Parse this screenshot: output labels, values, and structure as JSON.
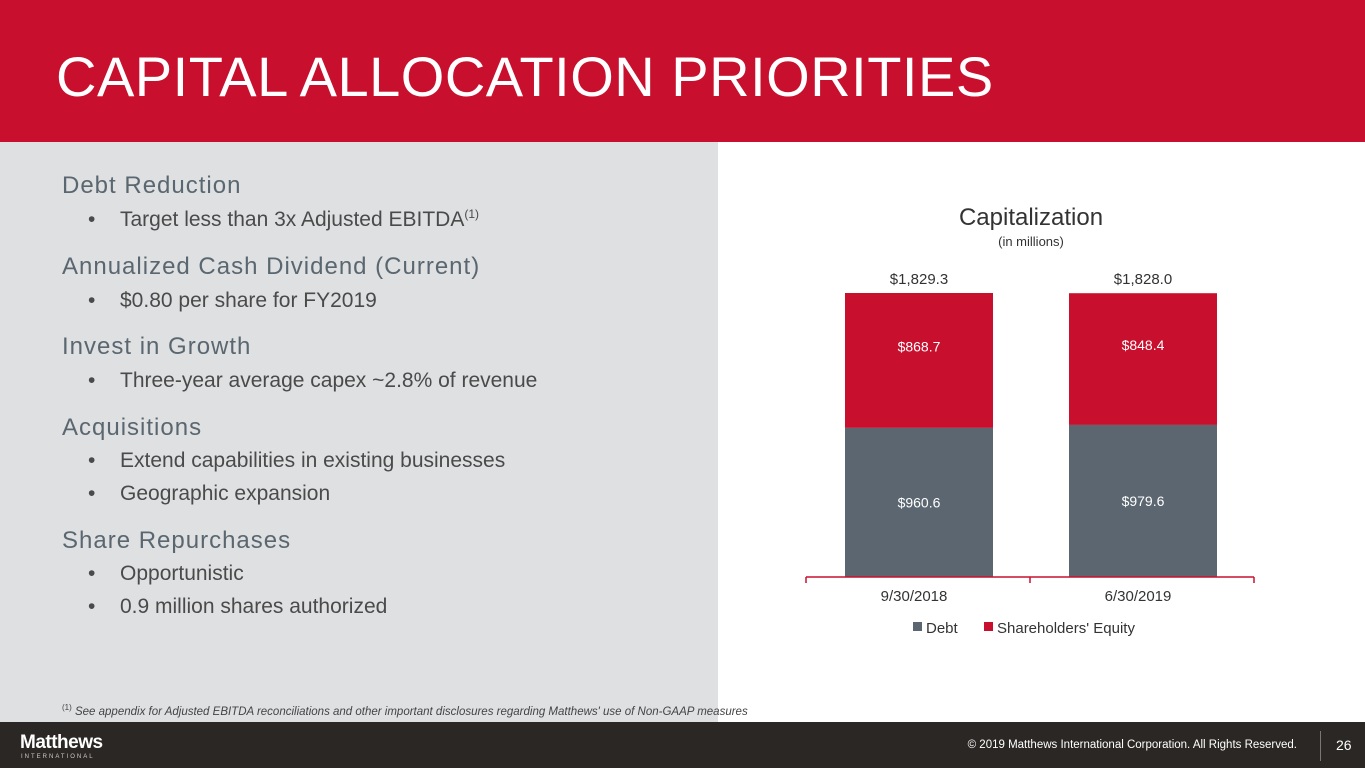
{
  "title": "CAPITAL ALLOCATION PRIORITIES",
  "sections": [
    {
      "heading": "Debt Reduction",
      "bullets": [
        "Target less than 3x Adjusted EBITDA"
      ],
      "sup": "(1)"
    },
    {
      "heading": "Annualized Cash Dividend (Current)",
      "bullets": [
        "$0.80 per share for FY2019"
      ]
    },
    {
      "heading": "Invest in Growth",
      "bullets": [
        "Three-year average capex ~2.8% of revenue"
      ]
    },
    {
      "heading": "Acquisitions",
      "bullets": [
        "Extend capabilities in existing businesses",
        "Geographic expansion"
      ]
    },
    {
      "heading": "Share Repurchases",
      "bullets": [
        "Opportunistic",
        "0.9 million shares authorized"
      ]
    }
  ],
  "bullet_char": "•",
  "footnote": {
    "mark": "(1)",
    "text": " See appendix for Adjusted EBITDA reconciliations and other important disclosures regarding Matthews' use of Non-GAAP measures"
  },
  "footer": {
    "logo": "Matthews",
    "logo_sub": "INTERNATIONAL",
    "copyright": "© 2019 Matthews International Corporation. All Rights Reserved.",
    "page": "26"
  },
  "chart_data": {
    "type": "bar",
    "stacked": true,
    "title": "Capitalization",
    "subtitle": "(in millions)",
    "categories": [
      "9/30/2018",
      "6/30/2019"
    ],
    "series": [
      {
        "name": "Debt",
        "color": "#5B6670",
        "values": [
          960.6,
          979.6
        ],
        "labels": [
          "$960.6",
          "$979.6"
        ]
      },
      {
        "name": "Shareholders' Equity",
        "color": "#C8102E",
        "values": [
          868.7,
          848.4
        ],
        "labels": [
          "$868.7",
          "$848.4"
        ]
      }
    ],
    "totals": [
      1829.3,
      1828.0
    ],
    "total_labels": [
      "$1,829.3",
      "$1,828.0"
    ],
    "legend": "bottom"
  }
}
